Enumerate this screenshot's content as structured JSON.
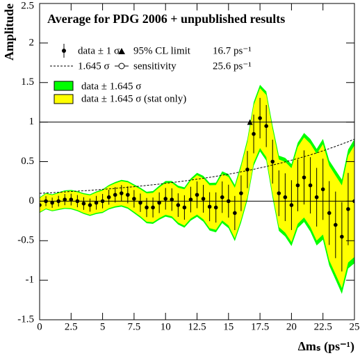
{
  "chart_data": {
    "type": "amplitude",
    "title": "Average for PDG 2006 + unpublished results",
    "y_label": "Amplitude",
    "x_label": "Δmₛ (ps⁻¹)",
    "xlim": [
      0,
      25
    ],
    "ylim": [
      -1.5,
      2.5
    ],
    "xticks": [
      0,
      2.5,
      5,
      7.5,
      10,
      12.5,
      15,
      17.5,
      20,
      22.5,
      25
    ],
    "yticks": [
      -1.5,
      -1,
      -0.5,
      0,
      0.5,
      1,
      1.5,
      2,
      2.5
    ],
    "reflines": [
      0,
      1
    ],
    "band_factor": 1.645,
    "legend": {
      "data": "data ± 1 σ",
      "dashed": "1.645 σ",
      "limit": "95% CL limit",
      "sensitivity": "sensitivity",
      "sensitivity_value": "25.6 ps⁻¹",
      "band_total": "data ± 1.645 σ",
      "band_stat": "data ± 1.645 σ (stat only)"
    },
    "limit": {
      "value": 16.7,
      "label": "16.7 ps⁻¹"
    },
    "colors": {
      "total": "#00ff00",
      "stat": "#ffff00",
      "points": "#000000"
    },
    "x": [
      0,
      0.5,
      1,
      1.5,
      2,
      2.5,
      3,
      3.5,
      4,
      4.5,
      5,
      5.5,
      6,
      6.5,
      7,
      7.5,
      8,
      8.5,
      9,
      9.5,
      10,
      10.5,
      11,
      11.5,
      12,
      12.5,
      13,
      13.5,
      14,
      14.5,
      15,
      15.5,
      16,
      16.5,
      17,
      17.5,
      18,
      18.5,
      19,
      19.5,
      20,
      20.5,
      21,
      21.5,
      22,
      22.5,
      23,
      23.5,
      24,
      24.5,
      25
    ],
    "values": [
      -0.05,
      0,
      -0.02,
      0,
      0.02,
      0.02,
      0,
      -0.03,
      -0.05,
      -0.02,
      0,
      0.05,
      0.08,
      0.1,
      0.08,
      0.03,
      -0.02,
      -0.08,
      -0.08,
      -0.02,
      0.03,
      0.02,
      -0.05,
      -0.08,
      0.02,
      0.08,
      0.03,
      -0.07,
      -0.08,
      0.05,
      0,
      -0.15,
      0.1,
      0.4,
      0.85,
      1.05,
      0.95,
      0.5,
      0.1,
      0.05,
      -0.05,
      0.2,
      0.3,
      0.2,
      0.05,
      0.15,
      -0.15,
      -0.3,
      -0.45,
      -0.1,
      0
    ],
    "errors": [
      0.06,
      0.063,
      0.065,
      0.068,
      0.071,
      0.074,
      0.077,
      0.08,
      0.083,
      0.087,
      0.091,
      0.094,
      0.098,
      0.103,
      0.107,
      0.111,
      0.116,
      0.121,
      0.126,
      0.131,
      0.137,
      0.143,
      0.149,
      0.155,
      0.162,
      0.169,
      0.176,
      0.183,
      0.191,
      0.199,
      0.208,
      0.216,
      0.226,
      0.235,
      0.245,
      0.256,
      0.266,
      0.278,
      0.289,
      0.302,
      0.315,
      0.328,
      0.342,
      0.356,
      0.371,
      0.387,
      0.404,
      0.421,
      0.439,
      0.457,
      0.477
    ],
    "stat_errors": [
      0.054,
      0.057,
      0.059,
      0.061,
      0.064,
      0.067,
      0.069,
      0.072,
      0.075,
      0.078,
      0.082,
      0.085,
      0.088,
      0.093,
      0.096,
      0.1,
      0.104,
      0.109,
      0.113,
      0.118,
      0.123,
      0.129,
      0.134,
      0.14,
      0.146,
      0.152,
      0.158,
      0.165,
      0.172,
      0.179,
      0.187,
      0.194,
      0.203,
      0.212,
      0.221,
      0.23,
      0.239,
      0.25,
      0.26,
      0.272,
      0.284,
      0.295,
      0.308,
      0.32,
      0.334,
      0.348,
      0.364,
      0.379,
      0.395,
      0.411,
      0.429
    ]
  }
}
